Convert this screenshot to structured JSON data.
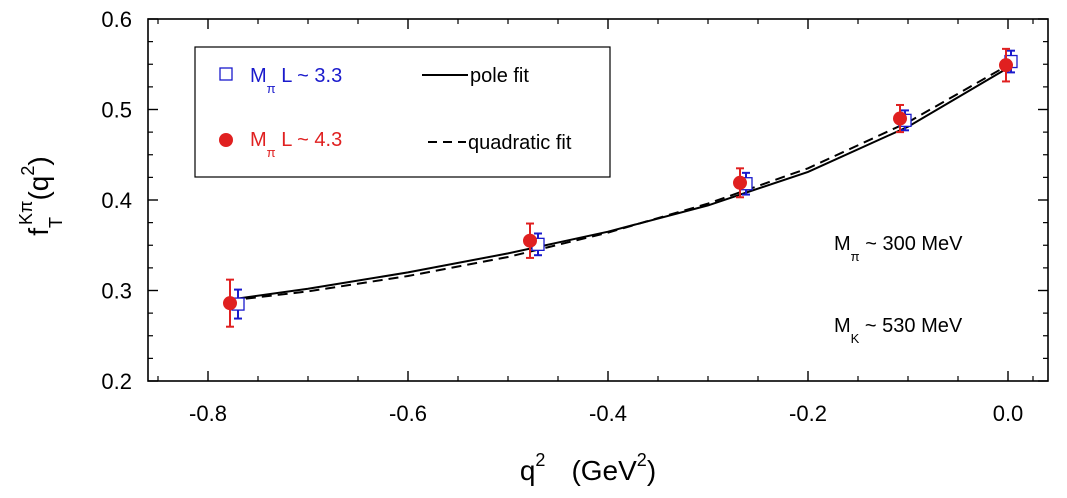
{
  "chart_data": {
    "type": "scatter",
    "xlim": [
      -0.86,
      0.04
    ],
    "ylim": [
      0.2,
      0.6
    ],
    "x_ticks": [
      {
        "value": -0.8,
        "label": "-0.8"
      },
      {
        "value": -0.6,
        "label": "-0.6"
      },
      {
        "value": -0.4,
        "label": "-0.4"
      },
      {
        "value": -0.2,
        "label": "-0.2"
      },
      {
        "value": 0.0,
        "label": "0.0"
      }
    ],
    "y_ticks": [
      {
        "value": 0.2,
        "label": "0.2"
      },
      {
        "value": 0.3,
        "label": "0.3"
      },
      {
        "value": 0.4,
        "label": "0.4"
      },
      {
        "value": 0.5,
        "label": "0.5"
      },
      {
        "value": 0.6,
        "label": "0.6"
      }
    ],
    "xlabel": {
      "base": "q",
      "sup": "2",
      "unit_open": "(GeV",
      "unit_sup": "2",
      "unit_close": ")"
    },
    "ylabel": {
      "base": "f",
      "sub": "T",
      "sup": "Kπ",
      "arg_open": "(q",
      "arg_sup": "2",
      "arg_close": ")"
    },
    "grid": false,
    "legend_position": "top-left",
    "series": [
      {
        "name": {
          "pre": "M",
          "sub": "π",
          "post": " L ~ 3.3"
        },
        "marker": "open-square",
        "color": "#1a1acc",
        "points": [
          {
            "x": -0.77,
            "y": 0.285,
            "err": 0.016
          },
          {
            "x": -0.47,
            "y": 0.351,
            "err": 0.012
          },
          {
            "x": -0.262,
            "y": 0.418,
            "err": 0.012
          },
          {
            "x": -0.103,
            "y": 0.488,
            "err": 0.011
          },
          {
            "x": 0.003,
            "y": 0.553,
            "err": 0.012
          }
        ]
      },
      {
        "name": {
          "pre": "M",
          "sub": "π",
          "post": " L ~ 4.3"
        },
        "marker": "filled-circle",
        "color": "#e02020",
        "points": [
          {
            "x": -0.778,
            "y": 0.286,
            "err": 0.026
          },
          {
            "x": -0.478,
            "y": 0.355,
            "err": 0.019
          },
          {
            "x": -0.268,
            "y": 0.419,
            "err": 0.016
          },
          {
            "x": -0.108,
            "y": 0.49,
            "err": 0.015
          },
          {
            "x": -0.002,
            "y": 0.549,
            "err": 0.018
          }
        ]
      }
    ],
    "fits": [
      {
        "name": "pole fit",
        "style": "solid",
        "x": [
          -0.778,
          -0.7,
          -0.6,
          -0.5,
          -0.4,
          -0.3,
          -0.2,
          -0.1,
          0.0
        ],
        "y": [
          0.29,
          0.302,
          0.32,
          0.341,
          0.365,
          0.394,
          0.431,
          0.481,
          0.546
        ]
      },
      {
        "name": "quadratic fit",
        "style": "dashed",
        "x": [
          -0.778,
          -0.7,
          -0.6,
          -0.5,
          -0.4,
          -0.3,
          -0.2,
          -0.1,
          0.0
        ],
        "y": [
          0.289,
          0.299,
          0.316,
          0.337,
          0.364,
          0.396,
          0.435,
          0.486,
          0.549
        ]
      }
    ],
    "annotations": [
      {
        "pre": "M",
        "sub": "π",
        "post": " ~ 300 MeV"
      },
      {
        "pre": "M",
        "sub": "K",
        "post": " ~ 530 MeV"
      }
    ]
  }
}
